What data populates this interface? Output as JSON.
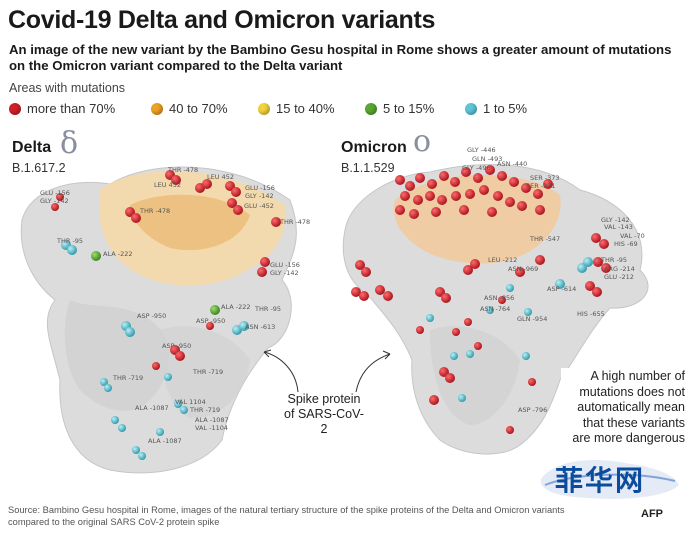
{
  "title": "Covid-19 Delta and Omicron variants",
  "subtitle": "An image of the new variant by the Bambino Gesu hospital in Rome shows a greater amount of mutations on the Omicron variant compared to the Delta variant",
  "legend": {
    "heading": "Areas with mutations",
    "items": [
      {
        "label": "more than 70%",
        "color": "#d0202a"
      },
      {
        "label": "40 to 70%",
        "color": "#f0a024"
      },
      {
        "label": "15 to 40%",
        "color": "#f3d23a"
      },
      {
        "label": "5 to 15%",
        "color": "#5aa832"
      },
      {
        "label": "1 to 5%",
        "color": "#5cc6d8"
      }
    ]
  },
  "delta": {
    "name": "Delta",
    "symbol": "δ",
    "lineage": "B.1.617.2",
    "labels": [
      "THR -478",
      "LEU 452",
      "LEU 452",
      "GLU -156",
      "GLY -142",
      "GLU -156",
      "GLY -142",
      "THR -478",
      "GLU -452",
      "THR -478",
      "THR -95",
      "ALA -222",
      "GLU -156",
      "GLY -142",
      "ALA -222",
      "THR -95",
      "ASP -950",
      "ASP -950",
      "ASN -613",
      "ASP -950",
      "THR -719",
      "THR -719",
      "ALA -1087",
      "VAL 1104",
      "THR -719",
      "ALA -1087",
      "VAL -1104",
      "ALA -1087"
    ]
  },
  "omicron": {
    "name": "Omicron",
    "symbol": "ο",
    "lineage": "B.1.1.529",
    "labels": [
      "GLY -446",
      "GLN -493",
      "ASN -440",
      "GLY -496",
      "SER -373",
      "SER -371",
      "THR -547",
      "GLY -142",
      "VAL -143",
      "VAL -70",
      "HIS -69",
      "THR -95",
      "ARG -214",
      "GLU -212",
      "LEU -212",
      "ASN -969",
      "ASN -856",
      "ASP -614",
      "ASN -764",
      "GLN -954",
      "HIS -655",
      "ASP -796"
    ]
  },
  "callout": "Spike protein of SARS-CoV-2",
  "note": "A high number of mutations does not automatically mean that these variants are more dangerous",
  "source": "Source: Bambino Gesu hospital in Rome, images of the natural tertiary structure of the spike proteins of the Delta and Omicron variants compared to the original SARS CoV-2 protein spike",
  "credit": "AFP",
  "watermark": "菲华网"
}
